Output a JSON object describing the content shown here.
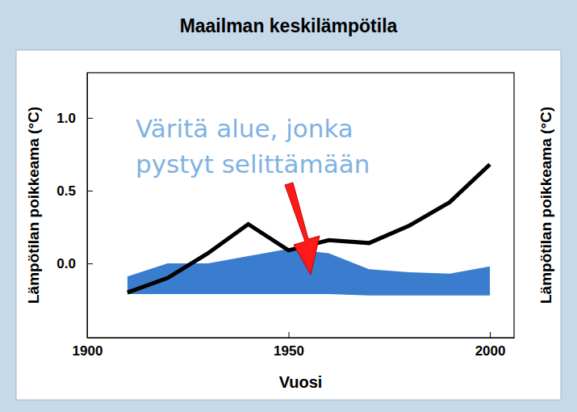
{
  "chart_data": {
    "type": "line",
    "title": "Maailman keskilämpötila",
    "xlabel": "Vuosi",
    "ylabel": "Lämpötilan poikkeama (°C)",
    "annotation": [
      "Väritä alue, jonka",
      "pystyt selittämään"
    ],
    "x": [
      1910,
      1920,
      1930,
      1940,
      1950,
      1960,
      1970,
      1980,
      1990,
      2000
    ],
    "series": [
      {
        "type": "area",
        "color": "#3a7dcf",
        "values": [
          -0.09,
          0.0,
          0.0,
          0.05,
          0.1,
          0.07,
          -0.04,
          -0.06,
          -0.07,
          -0.02
        ],
        "lower": [
          -0.21,
          -0.21,
          -0.21,
          -0.21,
          -0.21,
          -0.21,
          -0.22,
          -0.22,
          -0.22,
          -0.22
        ]
      },
      {
        "type": "line",
        "color": "#000000",
        "values": [
          -0.2,
          -0.1,
          0.07,
          0.27,
          0.09,
          0.16,
          0.14,
          0.26,
          0.42,
          0.68
        ]
      }
    ],
    "xlim": [
      1900,
      2006
    ],
    "ylim": [
      -0.51,
      1.31
    ],
    "xticks": [
      1900,
      1950,
      2000
    ],
    "yticks": [
      {
        "value": 0,
        "label": "0.0"
      },
      {
        "value": 0.5,
        "label": "0.5"
      },
      {
        "value": 1,
        "label": "1.0"
      }
    ],
    "grid": false
  }
}
